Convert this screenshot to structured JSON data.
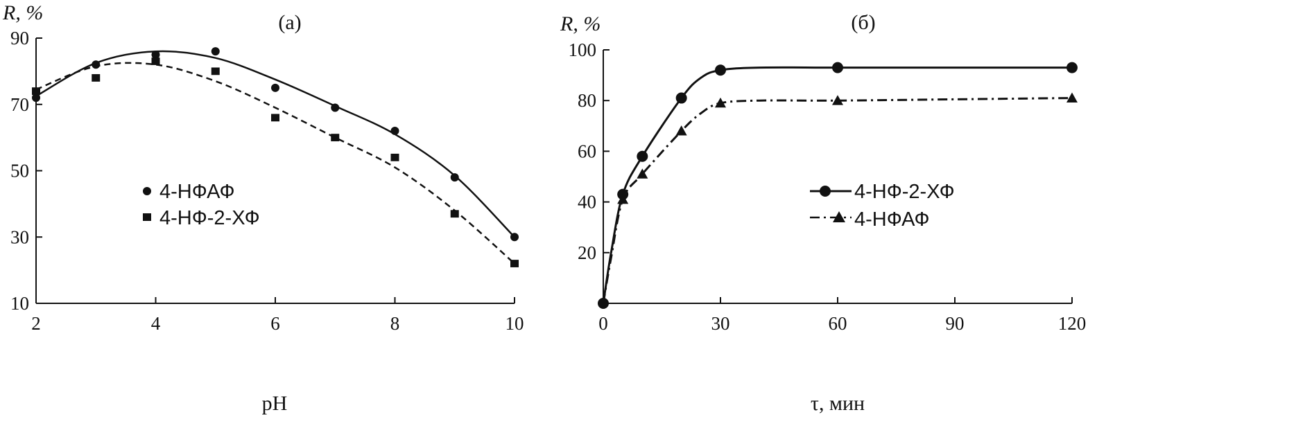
{
  "chart_data": [
    {
      "type": "scatter",
      "panel_label": "(а)",
      "xlabel": "pH",
      "ylabel": "R, %",
      "xlim": [
        2,
        10
      ],
      "ylim": [
        10,
        90
      ],
      "xticks": [
        2,
        4,
        6,
        8,
        10
      ],
      "yticks": [
        10,
        30,
        50,
        70,
        90
      ],
      "legend_position": "center-left",
      "series": [
        {
          "name": "4-НФАФ",
          "marker": "circle",
          "line_style": "solid",
          "points": [
            [
              2,
              72
            ],
            [
              3,
              82
            ],
            [
              4,
              85
            ],
            [
              5,
              86
            ],
            [
              6,
              75
            ],
            [
              7,
              69
            ],
            [
              8,
              62
            ],
            [
              9,
              48
            ],
            [
              10,
              30
            ]
          ],
          "curve": [
            [
              2,
              72.5
            ],
            [
              3,
              82.5
            ],
            [
              4,
              86
            ],
            [
              5,
              84
            ],
            [
              6,
              77.5
            ],
            [
              7,
              69.5
            ],
            [
              8,
              61
            ],
            [
              9,
              48.5
            ],
            [
              10,
              30
            ]
          ]
        },
        {
          "name": "4-НФ-2-ХФ",
          "marker": "square",
          "line_style": "dashed",
          "points": [
            [
              2,
              74
            ],
            [
              3,
              78
            ],
            [
              4,
              83
            ],
            [
              5,
              80
            ],
            [
              6,
              66
            ],
            [
              7,
              60
            ],
            [
              8,
              54
            ],
            [
              9,
              37
            ],
            [
              10,
              22
            ]
          ],
          "curve": [
            [
              2,
              74.5
            ],
            [
              3,
              81.5
            ],
            [
              4,
              82
            ],
            [
              5,
              77
            ],
            [
              6,
              69
            ],
            [
              7,
              60
            ],
            [
              8,
              51
            ],
            [
              9,
              38
            ],
            [
              10,
              22
            ]
          ]
        }
      ]
    },
    {
      "type": "line",
      "panel_label": "(б)",
      "xlabel": "τ, мин",
      "ylabel": "R, %",
      "xlim": [
        0,
        120
      ],
      "ylim": [
        0,
        100
      ],
      "xticks": [
        0,
        30,
        60,
        90,
        120
      ],
      "yticks": [
        20,
        40,
        60,
        80,
        100
      ],
      "legend_position": "center-right",
      "series": [
        {
          "name": "4-НФ-2-ХФ",
          "marker": "circle",
          "line_style": "solid",
          "points": [
            [
              0,
              0
            ],
            [
              5,
              43
            ],
            [
              10,
              58
            ],
            [
              20,
              81
            ],
            [
              30,
              92
            ],
            [
              60,
              93
            ],
            [
              120,
              93
            ]
          ],
          "curve": [
            [
              0,
              0
            ],
            [
              2,
              20
            ],
            [
              5,
              43
            ],
            [
              10,
              58
            ],
            [
              20,
              81
            ],
            [
              25,
              89
            ],
            [
              30,
              92
            ],
            [
              40,
              93
            ],
            [
              60,
              93
            ],
            [
              90,
              93
            ],
            [
              120,
              93
            ]
          ]
        },
        {
          "name": "4-НФАФ",
          "marker": "triangle",
          "line_style": "dashdot",
          "points": [
            [
              5,
              41
            ],
            [
              10,
              51
            ],
            [
              20,
              68
            ],
            [
              30,
              79
            ],
            [
              60,
              80
            ],
            [
              120,
              81
            ]
          ],
          "curve": [
            [
              0,
              0
            ],
            [
              2,
              18
            ],
            [
              5,
              41
            ],
            [
              10,
              51
            ],
            [
              20,
              68
            ],
            [
              25,
              75
            ],
            [
              30,
              79
            ],
            [
              40,
              80
            ],
            [
              60,
              80
            ],
            [
              90,
              80.5
            ],
            [
              120,
              81
            ]
          ]
        }
      ]
    }
  ]
}
